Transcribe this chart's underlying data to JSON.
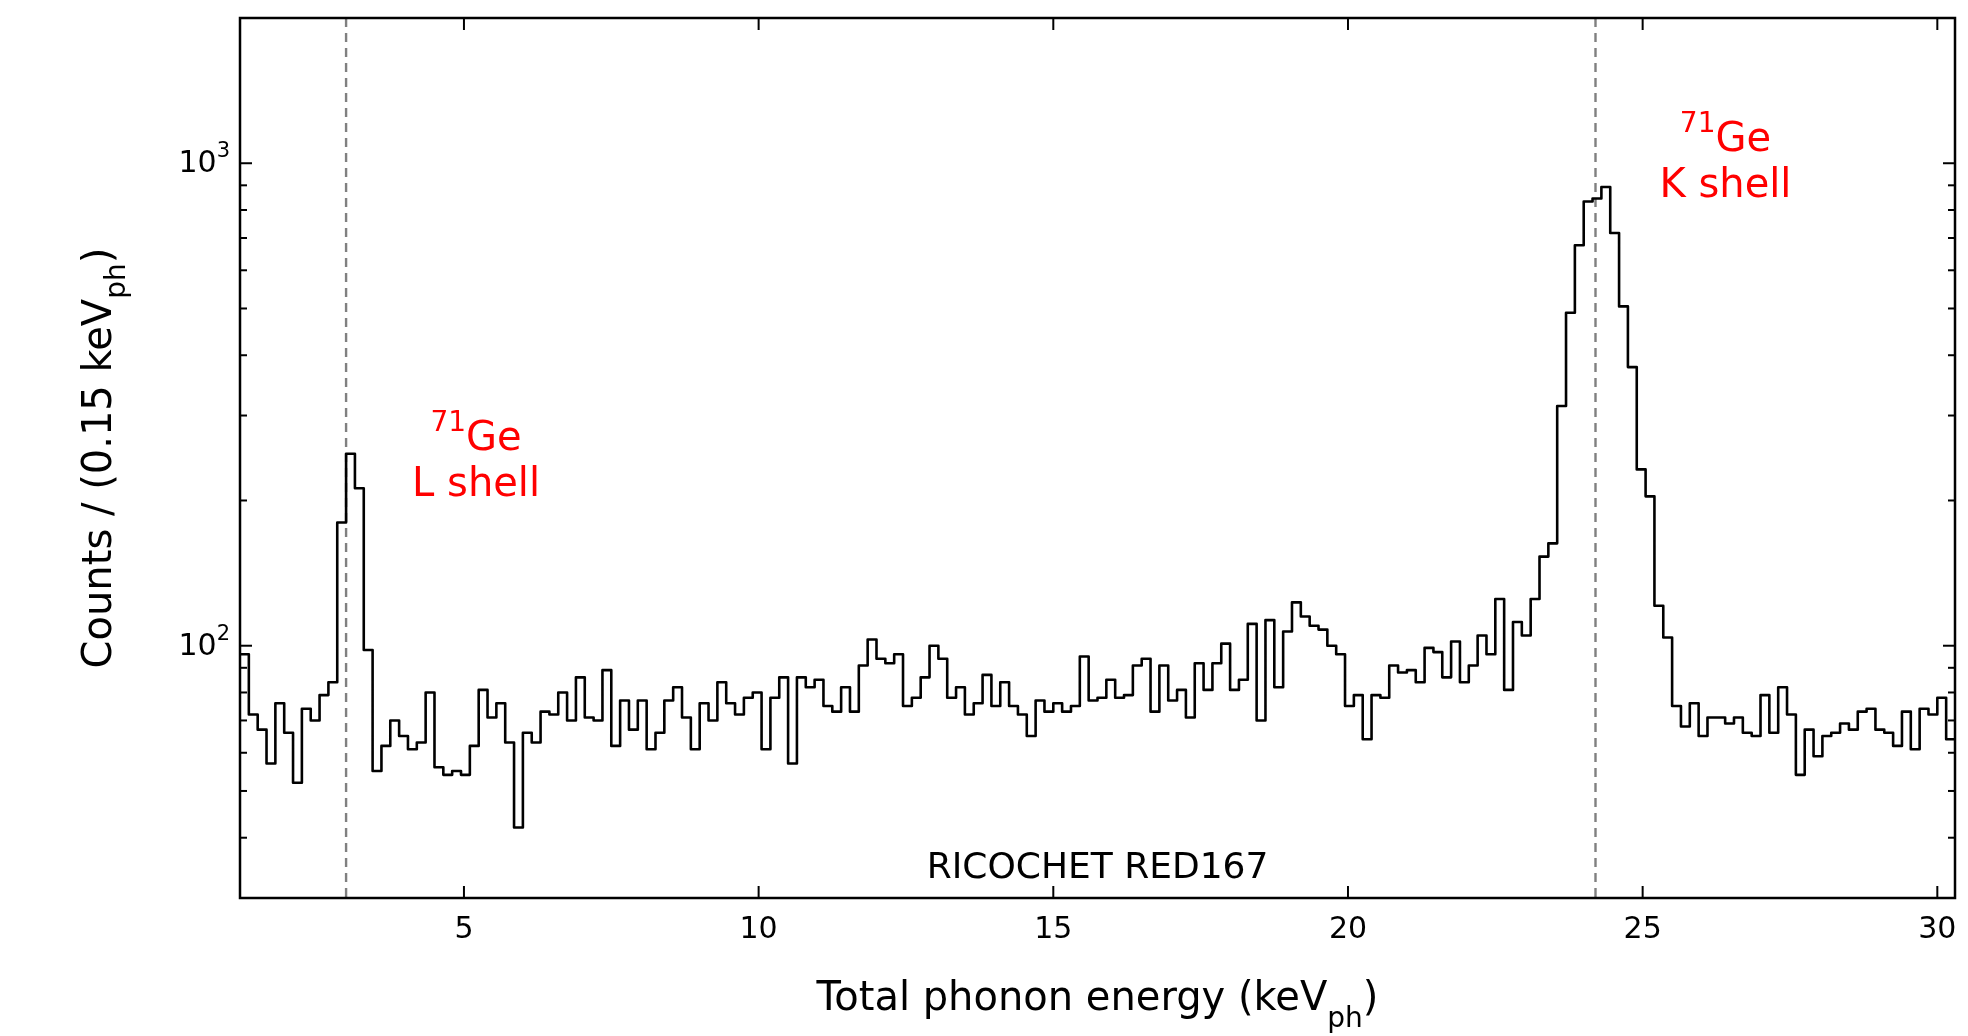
{
  "chart_data": {
    "type": "histogram",
    "xlabel": "Total phonon energy (keV$_{ph}$)",
    "ylabel": "Counts / (0.15 keV$_{ph}$)",
    "log": "y",
    "grid": false,
    "color": "#000000",
    "xlim": [
      1.2,
      30.3
    ],
    "xticks": [
      5,
      10,
      15,
      20,
      25,
      30
    ],
    "ylim": [
      30,
      2000
    ],
    "yticks": [
      {
        "value": 40,
        "label": null
      },
      {
        "value": 50,
        "label": null
      },
      {
        "value": 60,
        "label": null
      },
      {
        "value": 70,
        "label": null
      },
      {
        "value": 80,
        "label": null
      },
      {
        "value": 90,
        "label": null
      },
      {
        "value": 100,
        "label": "10$^{2}$"
      },
      {
        "value": 200,
        "label": null
      },
      {
        "value": 300,
        "label": null
      },
      {
        "value": 400,
        "label": null
      },
      {
        "value": 500,
        "label": null
      },
      {
        "value": 600,
        "label": null
      },
      {
        "value": 700,
        "label": null
      },
      {
        "value": 800,
        "label": null
      },
      {
        "value": 900,
        "label": null
      },
      {
        "value": 1000,
        "label": "10$^{3}$"
      },
      {
        "value": 2000,
        "label": null
      }
    ],
    "bins": [
      1.2,
      1.35,
      1.5,
      1.65,
      1.8,
      1.95,
      2.1,
      2.25,
      2.4,
      2.55,
      2.7,
      2.85,
      3,
      3.15,
      3.3,
      3.45,
      3.6,
      3.75,
      3.9,
      4.05,
      4.2,
      4.35,
      4.5,
      4.65,
      4.8,
      4.95,
      5.1,
      5.25,
      5.4,
      5.55,
      5.7,
      5.85,
      6,
      6.15,
      6.3,
      6.45,
      6.6,
      6.75,
      6.9,
      7.05,
      7.2,
      7.35,
      7.5,
      7.65,
      7.8,
      7.95,
      8.1,
      8.25,
      8.4,
      8.55,
      8.7,
      8.85,
      9,
      9.15,
      9.3,
      9.45,
      9.6,
      9.75,
      9.9,
      10.05,
      10.2,
      10.35,
      10.5,
      10.65,
      10.8,
      10.95,
      11.1,
      11.25,
      11.4,
      11.55,
      11.7,
      11.85,
      12,
      12.15,
      12.3,
      12.45,
      12.6,
      12.75,
      12.9,
      13.05,
      13.2,
      13.35,
      13.5,
      13.65,
      13.8,
      13.95,
      14.1,
      14.25,
      14.4,
      14.55,
      14.7,
      14.85,
      15,
      15.15,
      15.3,
      15.45,
      15.6,
      15.75,
      15.9,
      16.05,
      16.2,
      16.35,
      16.5,
      16.65,
      16.8,
      16.95,
      17.1,
      17.25,
      17.4,
      17.55,
      17.7,
      17.85,
      18,
      18.15,
      18.3,
      18.45,
      18.6,
      18.75,
      18.9,
      19.05,
      19.2,
      19.35,
      19.5,
      19.65,
      19.8,
      19.95,
      20.1,
      20.25,
      20.4,
      20.55,
      20.7,
      20.85,
      21,
      21.15,
      21.3,
      21.45,
      21.6,
      21.75,
      21.9,
      22.05,
      22.2,
      22.35,
      22.5,
      22.65,
      22.8,
      22.95,
      23.1,
      23.25,
      23.4,
      23.55,
      23.7,
      23.85,
      24,
      24.15,
      24.3,
      24.45,
      24.6,
      24.75,
      24.9,
      25.05,
      25.2,
      25.35,
      25.5,
      25.65,
      25.8,
      25.95,
      26.1,
      26.25,
      26.4,
      26.55,
      26.7,
      26.85,
      27,
      27.15,
      27.3,
      27.45,
      27.6,
      27.75,
      27.9,
      28.05,
      28.2,
      28.35,
      28.5,
      28.65,
      28.8,
      28.95,
      29.1,
      29.25,
      29.4,
      29.55,
      29.7,
      29.85,
      30,
      30.15,
      30.3
    ],
    "values": [
      96,
      72,
      67,
      57,
      76,
      66,
      52,
      74,
      70,
      79,
      84,
      180,
      250,
      212,
      98,
      55,
      62,
      70,
      65,
      61,
      63,
      80,
      56,
      54,
      55,
      54,
      62,
      81,
      71,
      76,
      63,
      42,
      66,
      63,
      73,
      72,
      80,
      70,
      86,
      71,
      70,
      89,
      62,
      77,
      67,
      77,
      61,
      66,
      77,
      82,
      71,
      61,
      76,
      70,
      84,
      76,
      72,
      78,
      80,
      61,
      78,
      86,
      57,
      86,
      82,
      85,
      75,
      73,
      82,
      73,
      91,
      103,
      94,
      92,
      96,
      75,
      78,
      86,
      100,
      94,
      78,
      82,
      72,
      76,
      87,
      75,
      84,
      75,
      72,
      65,
      77,
      73,
      76,
      73,
      75,
      95,
      77,
      78,
      85,
      78,
      79,
      91,
      94,
      73,
      91,
      77,
      81,
      71,
      92,
      81,
      92,
      101,
      81,
      85,
      111,
      70,
      113,
      82,
      107,
      123,
      115,
      110,
      108,
      100,
      96,
      75,
      79,
      64,
      79,
      78,
      91,
      88,
      89,
      84,
      99,
      97,
      86,
      102,
      84,
      91,
      105,
      96,
      125,
      81,
      112,
      105,
      125,
      153,
      163,
      314,
      490,
      676,
      833,
      845,
      893,
      717,
      505,
      378,
      232,
      204,
      121,
      104,
      75,
      68,
      76,
      65,
      71,
      71,
      69,
      71,
      66,
      65,
      79,
      66,
      82,
      72,
      54,
      67,
      59,
      65,
      66,
      69,
      67,
      73,
      74,
      67,
      66,
      62,
      73,
      61,
      74,
      72,
      78,
      64
    ],
    "ref_lines": [
      {
        "axis": "x",
        "value": 3.0,
        "color": "#808080",
        "line_style": "dashed"
      },
      {
        "axis": "x",
        "value": 24.2,
        "color": "#808080",
        "line_style": "dashed"
      }
    ],
    "annotations": [
      {
        "text": "$^{71}$Ge\nL shell",
        "x": 3.0,
        "y": 240
      },
      {
        "text": "$^{71}$Ge\nK shell",
        "x": 24.2,
        "y": 1000
      },
      "RICOCHET RED167"
    ]
  }
}
